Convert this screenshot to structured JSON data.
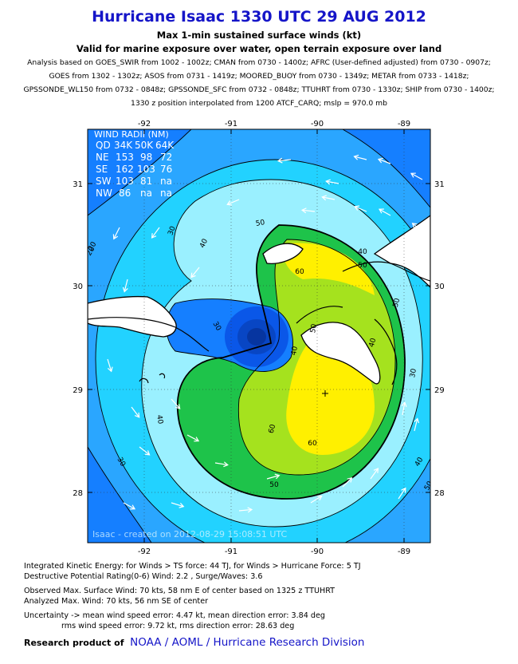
{
  "header": {
    "title": "Hurricane Isaac 1330 UTC 29 AUG 2012",
    "subtitle1": "Max 1-min sustained surface winds (kt)",
    "subtitle2": "Valid for marine exposure over water, open terrain exposure over land",
    "source_lines": [
      "Analysis based on GOES_SWIR from 1002 - 1002z; CMAN from 0730 - 1400z; AFRC (User-defined adjusted) from 0730 - 0907z;",
      "GOES from 1302 - 1302z; ASOS from 0731 - 1419z; MOORED_BUOY from 0730 - 1349z; METAR from 0733 - 1418z;",
      "GPSSONDE_WL150 from 0732 - 0848z; GPSSONDE_SFC from 0732 - 0848z; TTUHRT from 0730 - 1330z; SHIP from 0730 - 1400z;",
      "1330 z position interpolated from 1200 ATCF_CARQ; mslp = 970.0 mb"
    ]
  },
  "map": {
    "lon_ticks": [
      "-92",
      "-91",
      "-90",
      "-89"
    ],
    "lat_ticks": [
      "31",
      "30",
      "29",
      "28"
    ],
    "lon_range": [
      -92.64,
      -88.69
    ],
    "lat_range": [
      27.55,
      31.55
    ],
    "center": {
      "lon": -89.9,
      "lat": 28.95
    },
    "contour_labels": [
      "20",
      "30",
      "40",
      "50",
      "60",
      "30",
      "40",
      "50",
      "60",
      "50",
      "40",
      "30",
      "20",
      "50",
      "40",
      "30",
      "40",
      "50",
      "60",
      "40",
      "50"
    ],
    "watermark": "Isaac - created on 2012-08-29 15:08:51 UTC",
    "colors": {
      "light_cyan": "#9af0ff",
      "cyan": "#22d2ff",
      "sky": "#2aa6ff",
      "blue": "#157fff",
      "dark_blue": "#0a57e8",
      "green": "#1ec34a",
      "yellow_green": "#a5e21e",
      "yellow": "#fff000",
      "land": "#ffffff"
    }
  },
  "wind_radii": {
    "title": "WIND RADII (NM)",
    "header": [
      "QD",
      "34K",
      "50K",
      "64K"
    ],
    "rows": [
      [
        "NE",
        "153",
        "98",
        "72"
      ],
      [
        "SE",
        "162",
        "103",
        "76"
      ],
      [
        "SW",
        "103",
        "81",
        "na"
      ],
      [
        "NW",
        "86",
        "na",
        "na"
      ]
    ]
  },
  "info": {
    "ike": "Integrated Kinetic Energy: for Winds > TS force: 44 TJ, for Winds > Hurricane Force: 5 TJ",
    "dpr": "Destructive Potential Rating(0-6)  Wind: 2.2 , Surge/Waves: 3.6",
    "obs": "Observed Max. Surface Wind: 70 kts, 58 nm E of center based on 1325 z TTUHRT",
    "ana": "Analyzed Max. Wind: 70 kts, 56 nm  SE of center",
    "unc1": "Uncertainty -> mean wind speed error: 4.47 kt, mean direction error: 3.84 deg",
    "unc2": "rms wind speed error: 9.72 kt, rms direction error: 28.63 deg"
  },
  "footer": {
    "prefix": "Research product of",
    "org": "NOAA  /  AOML  /  Hurricane Research Division"
  }
}
